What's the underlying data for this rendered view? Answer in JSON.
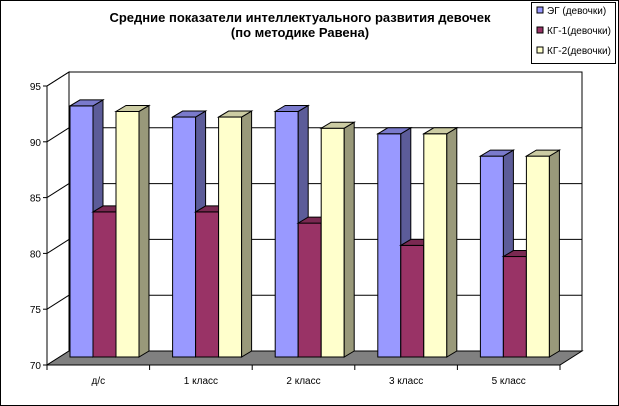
{
  "chart_data": {
    "type": "bar",
    "title": "Средние показатели интеллектуального развития девочек",
    "subtitle": "(по методике Равена)",
    "categories": [
      "д/с",
      "1 класс",
      "2 класс",
      "3 класс",
      "5 класс"
    ],
    "series": [
      {
        "name": "ЭГ (девочки)",
        "values": [
          92.5,
          91.5,
          92,
          90,
          88
        ],
        "color": "#9999FF"
      },
      {
        "name": "КГ-1(девочки)",
        "values": [
          83,
          83,
          82,
          80,
          79
        ],
        "color": "#993366"
      },
      {
        "name": "КГ-2(девочки)",
        "values": [
          92,
          91.5,
          90.5,
          90,
          88
        ],
        "color": "#FFFFCC"
      }
    ],
    "ylim": [
      70,
      95
    ],
    "yticks": [
      70,
      75,
      80,
      85,
      90,
      95
    ],
    "xlabel": "",
    "ylabel": "",
    "grid": true,
    "three_d": true,
    "legend_position": "top-right"
  }
}
